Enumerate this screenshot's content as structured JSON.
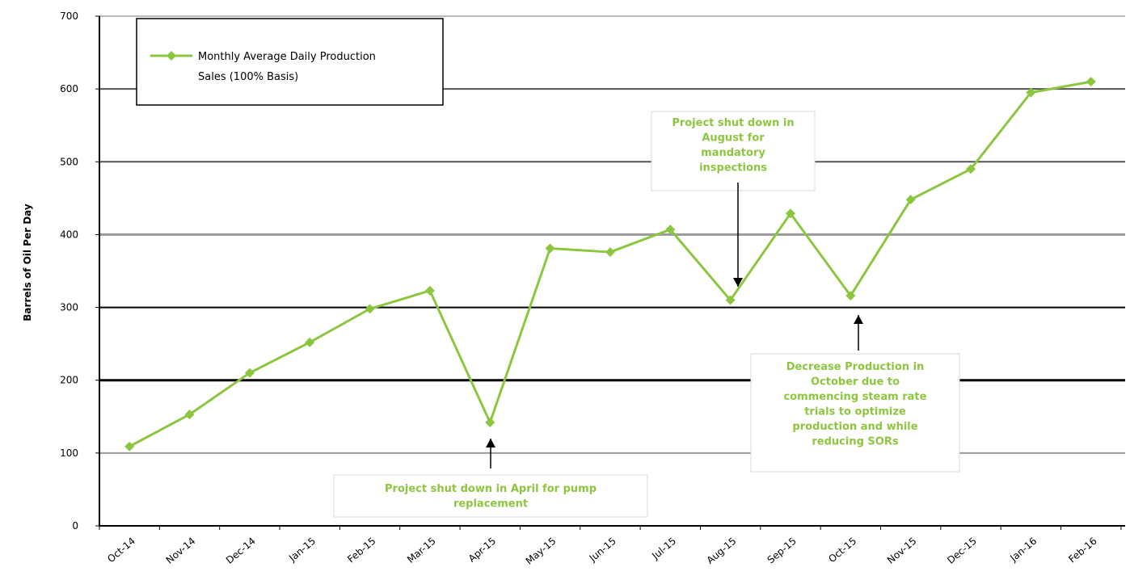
{
  "chart_data": {
    "type": "line",
    "ylabel": "Barrels of Oil Per Day",
    "xlabel": "",
    "title": "",
    "ylim": [
      0,
      700
    ],
    "yticks": [
      0,
      100,
      200,
      300,
      400,
      500,
      600,
      700
    ],
    "ytick_labels": [
      "0",
      "100",
      "200",
      "300",
      "400",
      "500",
      "600",
      "700"
    ],
    "grid": true,
    "categories": [
      "Oct-14",
      "Nov-14",
      "Dec-14",
      "Jan-15",
      "Feb-15",
      "Mar-15",
      "Apr-15",
      "May-15",
      "Jun-15",
      "Jul-15",
      "Aug-15",
      "Sep-15",
      "Oct-15",
      "Nov-15",
      "Dec-15",
      "Jan-16",
      "Feb-16"
    ],
    "series": [
      {
        "name": "Monthly Average Daily Production Sales (100% Basis)",
        "color": "#8cc63f",
        "values": [
          109,
          153,
          210,
          252,
          298,
          323,
          142,
          381,
          376,
          407,
          310,
          429,
          316,
          448,
          490,
          595,
          610
        ]
      }
    ],
    "legend": {
      "position": "top-left",
      "lines": [
        "Monthly Average Daily Production",
        "Sales (100% Basis)"
      ]
    },
    "annotations": [
      {
        "category": "Apr-15",
        "lines": [
          "Project shut down in April for pump",
          "replacement"
        ]
      },
      {
        "category": "Aug-15",
        "lines": [
          "Project shut down in",
          "August for",
          "mandatory",
          "inspections"
        ]
      },
      {
        "category": "Oct-15",
        "lines": [
          "Decrease Production in",
          "October due to",
          "commencing steam rate",
          "trials to optimize",
          "production and while",
          "reducing SORs"
        ]
      }
    ]
  }
}
